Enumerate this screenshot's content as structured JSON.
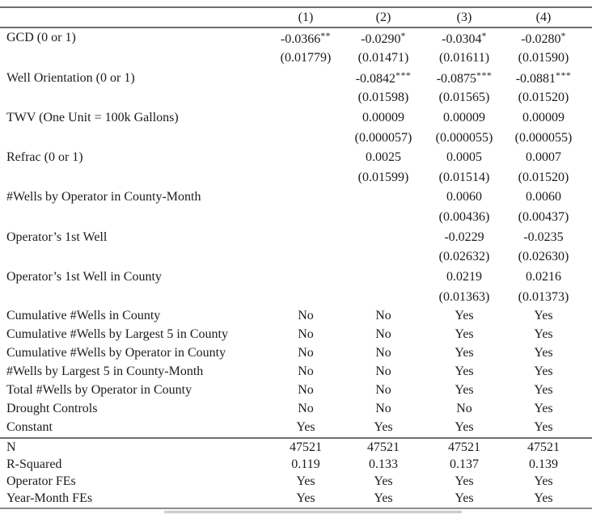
{
  "colors": {
    "ink": "#1b1b1b",
    "rule_gray": "#6f6f6f"
  },
  "table": {
    "column_headers": [
      "(1)",
      "(2)",
      "(3)",
      "(4)"
    ],
    "coef_rows": [
      {
        "label": "GCD (0 or 1)",
        "cells": [
          {
            "v": "-0.0366",
            "s": "**"
          },
          {
            "v": "-0.0290",
            "s": "*"
          },
          {
            "v": "-0.0304",
            "s": "*"
          },
          {
            "v": "-0.0280",
            "s": "*"
          }
        ]
      },
      {
        "label": "",
        "cells": [
          {
            "v": "(0.01779)"
          },
          {
            "v": "(0.01471)"
          },
          {
            "v": "(0.01611)"
          },
          {
            "v": "(0.01590)"
          }
        ]
      },
      {
        "label": "Well Orientation (0 or 1)",
        "cells": [
          {
            "v": ""
          },
          {
            "v": "-0.0842",
            "s": "***"
          },
          {
            "v": "-0.0875",
            "s": "***"
          },
          {
            "v": "-0.0881",
            "s": "***"
          }
        ]
      },
      {
        "label": "",
        "cells": [
          {
            "v": ""
          },
          {
            "v": "(0.01598)"
          },
          {
            "v": "(0.01565)"
          },
          {
            "v": "(0.01520)"
          }
        ]
      },
      {
        "label": "TWV (One Unit = 100k Gallons)",
        "cells": [
          {
            "v": ""
          },
          {
            "v": "0.00009"
          },
          {
            "v": "0.00009"
          },
          {
            "v": "0.00009"
          }
        ]
      },
      {
        "label": "",
        "cells": [
          {
            "v": ""
          },
          {
            "v": "(0.000057)"
          },
          {
            "v": "(0.000055)"
          },
          {
            "v": "(0.000055)"
          }
        ]
      },
      {
        "label": "Refrac (0 or 1)",
        "cells": [
          {
            "v": ""
          },
          {
            "v": "0.0025"
          },
          {
            "v": "0.0005"
          },
          {
            "v": "0.0007"
          }
        ]
      },
      {
        "label": "",
        "cells": [
          {
            "v": ""
          },
          {
            "v": "(0.01599)"
          },
          {
            "v": "(0.01514)"
          },
          {
            "v": "(0.01520)"
          }
        ]
      },
      {
        "label": "#Wells by Operator in County-Month",
        "cells": [
          {
            "v": ""
          },
          {
            "v": ""
          },
          {
            "v": "0.0060"
          },
          {
            "v": "0.0060"
          }
        ]
      },
      {
        "label": "",
        "cells": [
          {
            "v": ""
          },
          {
            "v": ""
          },
          {
            "v": "(0.00436)"
          },
          {
            "v": "(0.00437)"
          }
        ]
      },
      {
        "label": "Operator’s 1st Well",
        "cells": [
          {
            "v": ""
          },
          {
            "v": ""
          },
          {
            "v": "-0.0229"
          },
          {
            "v": "-0.0235"
          }
        ]
      },
      {
        "label": "",
        "cells": [
          {
            "v": ""
          },
          {
            "v": ""
          },
          {
            "v": "(0.02632)"
          },
          {
            "v": "(0.02630)"
          }
        ]
      },
      {
        "label": "Operator’s 1st Well in County",
        "cells": [
          {
            "v": ""
          },
          {
            "v": ""
          },
          {
            "v": "0.0219"
          },
          {
            "v": "0.0216"
          }
        ]
      },
      {
        "label": "",
        "cells": [
          {
            "v": ""
          },
          {
            "v": ""
          },
          {
            "v": "(0.01363)"
          },
          {
            "v": "(0.01373)"
          }
        ]
      }
    ],
    "control_rows": [
      {
        "label": "Cumulative #Wells in County",
        "values": [
          "No",
          "No",
          "Yes",
          "Yes"
        ]
      },
      {
        "label": "Cumulative #Wells by Largest 5 in County",
        "values": [
          "No",
          "No",
          "Yes",
          "Yes"
        ]
      },
      {
        "label": "Cumulative #Wells by Operator in County",
        "values": [
          "No",
          "No",
          "Yes",
          "Yes"
        ]
      },
      {
        "label": "#Wells by Largest 5 in County-Month",
        "values": [
          "No",
          "No",
          "Yes",
          "Yes"
        ]
      },
      {
        "label": "Total #Wells by Operator in County",
        "values": [
          "No",
          "No",
          "Yes",
          "Yes"
        ]
      },
      {
        "label": "Drought Controls",
        "values": [
          "No",
          "No",
          "No",
          "Yes"
        ]
      },
      {
        "label": "Constant",
        "values": [
          "Yes",
          "Yes",
          "Yes",
          "Yes"
        ]
      }
    ],
    "stat_rows": [
      {
        "label": "N",
        "values": [
          "47521",
          "47521",
          "47521",
          "47521"
        ]
      },
      {
        "label": "R-Squared",
        "values": [
          "0.119",
          "0.133",
          "0.137",
          "0.139"
        ]
      },
      {
        "label": "Operator FEs",
        "values": [
          "Yes",
          "Yes",
          "Yes",
          "Yes"
        ]
      },
      {
        "label": "Year-Month FEs",
        "values": [
          "Yes",
          "Yes",
          "Yes",
          "Yes"
        ]
      }
    ]
  }
}
